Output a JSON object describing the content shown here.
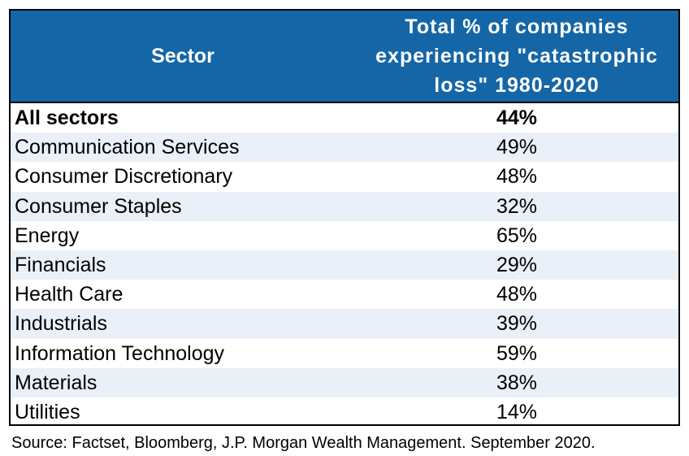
{
  "chart_data": {
    "type": "table",
    "columns": [
      "Sector",
      "Total % of companies experiencing \"catastrophic loss\" 1980-2020"
    ],
    "header": {
      "sector": "Sector",
      "value_lines": [
        "Total % of companies",
        "experiencing \"catastrophic",
        "loss\" 1980-2020"
      ]
    },
    "rows": [
      {
        "sector": "All sectors",
        "value": "44%"
      },
      {
        "sector": "Communication Services",
        "value": "49%"
      },
      {
        "sector": "Consumer Discretionary",
        "value": "48%"
      },
      {
        "sector": "Consumer Staples",
        "value": "32%"
      },
      {
        "sector": "Energy",
        "value": "65%"
      },
      {
        "sector": "Financials",
        "value": "29%"
      },
      {
        "sector": "Health Care",
        "value": "48%"
      },
      {
        "sector": "Industrials",
        "value": "39%"
      },
      {
        "sector": "Information Technology",
        "value": "59%"
      },
      {
        "sector": "Materials",
        "value": "38%"
      },
      {
        "sector": "Utilities",
        "value": "14%"
      }
    ],
    "values": [
      44,
      49,
      48,
      32,
      65,
      29,
      48,
      39,
      59,
      38,
      14
    ],
    "source": "Source: Factset, Bloomberg, J.P. Morgan Wealth Management. September 2020."
  },
  "colors": {
    "header_bg": "#1466a7",
    "header_text": "#ffffff",
    "stripe": "#e9f0f7"
  }
}
